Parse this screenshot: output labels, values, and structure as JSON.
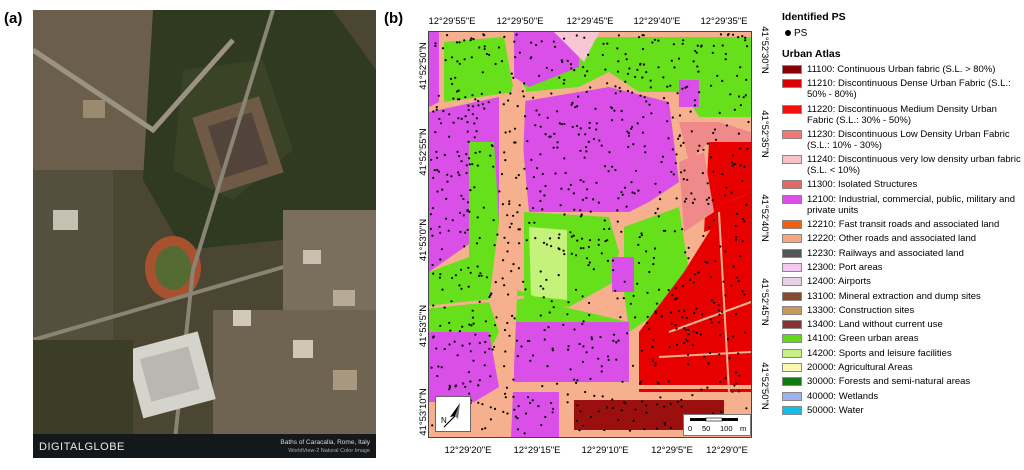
{
  "panels": {
    "a": "(a)",
    "b": "(b)"
  },
  "satellite": {
    "logo": "DIGITALGLOBE",
    "caption_line1": "Baths of Caracalla, Rome, Italy",
    "caption_line2": "WorldView-2 Natural Color Image"
  },
  "map": {
    "top_ticks": [
      "12°29'55\"E",
      "12°29'50\"E",
      "12°29'45\"E",
      "12°29'40\"E",
      "12°29'35\"E"
    ],
    "bottom_ticks": [
      "12°29'20\"E",
      "12°29'15\"E",
      "12°29'10\"E",
      "12°29'5\"E",
      "12°29'0\"E"
    ],
    "left_ticks": [
      "41°52'50\"N",
      "41°52'55\"N",
      "41°53'0\"N",
      "41°53'5\"N",
      "41°53'10\"N"
    ],
    "right_ticks": [
      "41°52'30\"N",
      "41°52'35\"N",
      "41°52'40\"N",
      "41°52'45\"N",
      "41°52'50\"N"
    ],
    "north_label": "N",
    "scale_labels": [
      "0",
      "50",
      "100",
      "m"
    ],
    "colors": {
      "road": "#f7b08e",
      "green": "#66e01a",
      "industrial": "#d94fe8",
      "sports": "#c4f27a",
      "dense": "#e60000",
      "medium": "#ee1010",
      "low": "#f08a8a",
      "vlow": "#f9c6d6",
      "continuous": "#9b0f0f"
    }
  },
  "legend": {
    "ps_title": "Identified PS",
    "ps_label": "PS",
    "ua_title": "Urban Atlas",
    "items": [
      {
        "label": "11100: Continuous Urban fabric (S.L. > 80%)",
        "color": "#8b0000"
      },
      {
        "label": "11210: Discontinuous Dense Urban Fabric (S.L.: 50% - 80%)",
        "color": "#d80000"
      },
      {
        "label": "11220: Discontinuous Medium Density Urban Fabric (S.L.: 30% - 50%)",
        "color": "#f01010"
      },
      {
        "label": "11230: Discontinuous Low Density Urban Fabric (S.L.: 10% - 30%)",
        "color": "#f07878"
      },
      {
        "label": "11240: Discontinuous very low density urban fabric (S.L. < 10%)",
        "color": "#f8c0c8"
      },
      {
        "label": "11300: Isolated Structures",
        "color": "#e06868"
      },
      {
        "label": "12100: Industrial, commercial, public, military and private units",
        "color": "#d94fe8"
      },
      {
        "label": "12210: Fast transit roads and associated land",
        "color": "#f06010"
      },
      {
        "label": "12220: Other roads and associated land",
        "color": "#f8a880"
      },
      {
        "label": "12230: Railways and associated land",
        "color": "#555555"
      },
      {
        "label": "12300: Port areas",
        "color": "#f2c8f0"
      },
      {
        "label": "12400: Airports",
        "color": "#e8d0e8"
      },
      {
        "label": "13100: Mineral extraction and dump sites",
        "color": "#8a4a30"
      },
      {
        "label": "13300: Construction sites",
        "color": "#c89858"
      },
      {
        "label": "13400: Land without current use",
        "color": "#8a3030"
      },
      {
        "label": "14100: Green urban areas",
        "color": "#66d81a"
      },
      {
        "label": "14200: Sports and leisure facilities",
        "color": "#c8f088"
      },
      {
        "label": "20000: Agricultural Areas",
        "color": "#f8f8b0"
      },
      {
        "label": "30000: Forests and semi-natural areas",
        "color": "#127a12"
      },
      {
        "label": "40000: Wetlands",
        "color": "#a0b0f0"
      },
      {
        "label": "50000: Water",
        "color": "#10c0e8"
      }
    ]
  }
}
